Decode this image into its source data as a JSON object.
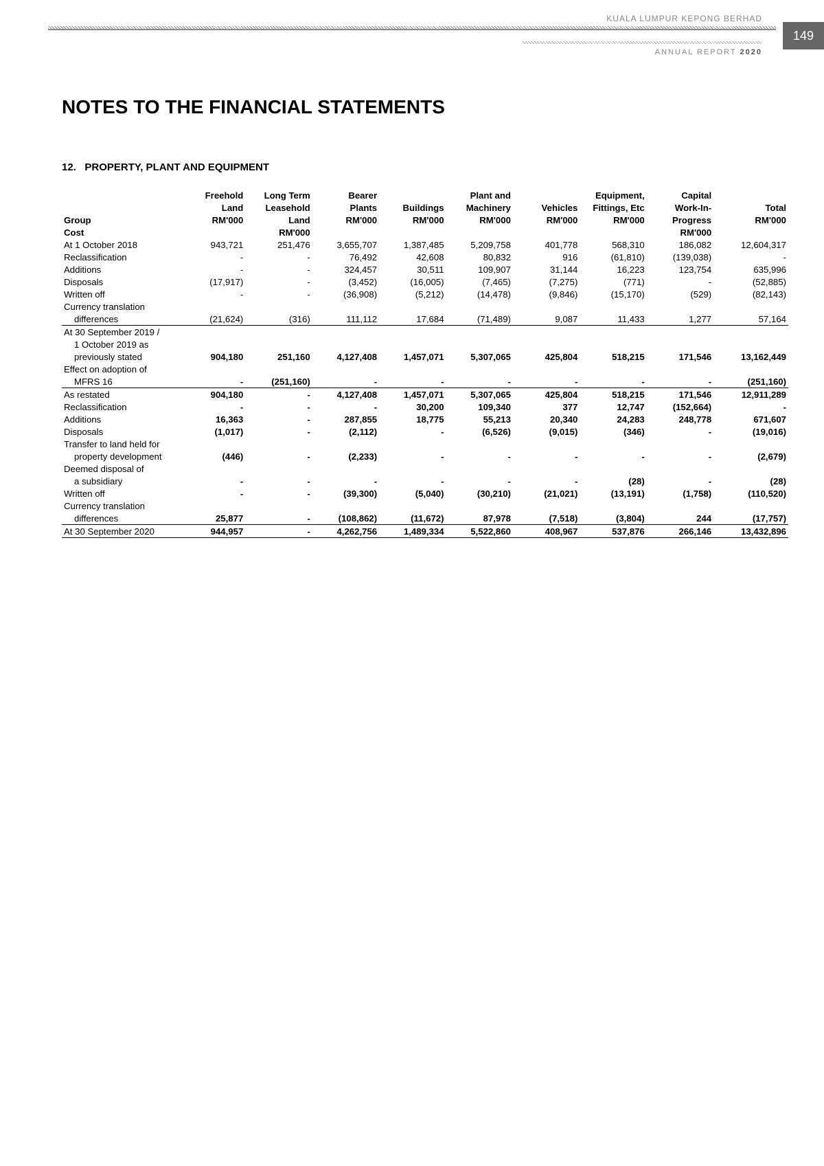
{
  "page_number": "149",
  "company": "KUALA LUMPUR KEPONG BERHAD",
  "report_label": "ANNUAL REPORT",
  "report_year": "2020",
  "page_title": "NOTES TO THE FINANCIAL STATEMENTS",
  "note_number": "12.",
  "note_heading": "PROPERTY, PLANT AND EQUIPMENT",
  "group_label": "Group",
  "section_label": "Cost",
  "columns": [
    {
      "l1": "",
      "l2": "",
      "l3": ""
    },
    {
      "l1": "Freehold",
      "l2": "Land",
      "l3": "RM'000"
    },
    {
      "l1": "Long Term",
      "l2": "Leasehold",
      "l2b": "Land",
      "l3": "RM'000"
    },
    {
      "l1": "Bearer",
      "l2": "Plants",
      "l3": "RM'000"
    },
    {
      "l1": "",
      "l2": "Buildings",
      "l3": "RM'000"
    },
    {
      "l1": "Plant and",
      "l2": "Machinery",
      "l3": "RM'000"
    },
    {
      "l1": "",
      "l2": "Vehicles",
      "l3": "RM'000"
    },
    {
      "l1": "Equipment,",
      "l2": "Fittings, Etc",
      "l3": "RM'000"
    },
    {
      "l1": "Capital",
      "l2": "Work-In-",
      "l2b": "Progress",
      "l3": "RM'000"
    },
    {
      "l1": "",
      "l2": "Total",
      "l3": "RM'000"
    }
  ],
  "rows": [
    {
      "label": "At 1 October 2018",
      "v": [
        "943,721",
        "251,476",
        "3,655,707",
        "1,387,485",
        "5,209,758",
        "401,778",
        "568,310",
        "186,082",
        "12,604,317"
      ]
    },
    {
      "label": "Reclassification",
      "v": [
        "-",
        "-",
        "76,492",
        "42,608",
        "80,832",
        "916",
        "(61,810)",
        "(139,038)",
        "-"
      ]
    },
    {
      "label": "Additions",
      "v": [
        "-",
        "-",
        "324,457",
        "30,511",
        "109,907",
        "31,144",
        "16,223",
        "123,754",
        "635,996"
      ]
    },
    {
      "label": "Disposals",
      "v": [
        "(17,917)",
        "-",
        "(3,452)",
        "(16,005)",
        "(7,465)",
        "(7,275)",
        "(771)",
        "-",
        "(52,885)"
      ]
    },
    {
      "label": "Written off",
      "v": [
        "-",
        "-",
        "(36,908)",
        "(5,212)",
        "(14,478)",
        "(9,846)",
        "(15,170)",
        "(529)",
        "(82,143)"
      ]
    },
    {
      "label": "Currency translation",
      "v": [
        "",
        "",
        "",
        "",
        "",
        "",
        "",
        "",
        ""
      ],
      "noline": true
    },
    {
      "label": "differences",
      "indent": true,
      "v": [
        "(21,624)",
        "(316)",
        "111,112",
        "17,684",
        "(71,489)",
        "9,087",
        "11,433",
        "1,277",
        "57,164"
      ],
      "rule_bottom": true
    },
    {
      "label": "At 30 September 2019 /",
      "v": [
        "",
        "",
        "",
        "",
        "",
        "",
        "",
        "",
        ""
      ],
      "noline": true
    },
    {
      "label": "1 October 2019 as",
      "indent": true,
      "v": [
        "",
        "",
        "",
        "",
        "",
        "",
        "",
        "",
        ""
      ],
      "noline": true
    },
    {
      "label": "previously stated",
      "indent": true,
      "bold": true,
      "v": [
        "904,180",
        "251,160",
        "4,127,408",
        "1,457,071",
        "5,307,065",
        "425,804",
        "518,215",
        "171,546",
        "13,162,449"
      ]
    },
    {
      "label": "Effect on adoption of",
      "v": [
        "",
        "",
        "",
        "",
        "",
        "",
        "",
        "",
        ""
      ],
      "noline": true
    },
    {
      "label": "MFRS 16",
      "indent": true,
      "bold": true,
      "v": [
        "-",
        "(251,160)",
        "-",
        "-",
        "-",
        "-",
        "-",
        "-",
        "(251,160)"
      ],
      "rule_bottom": true
    },
    {
      "label": "As restated",
      "bold": true,
      "v": [
        "904,180",
        "-",
        "4,127,408",
        "1,457,071",
        "5,307,065",
        "425,804",
        "518,215",
        "171,546",
        "12,911,289"
      ]
    },
    {
      "label": "Reclassification",
      "bold": true,
      "v": [
        "-",
        "-",
        "-",
        "30,200",
        "109,340",
        "377",
        "12,747",
        "(152,664)",
        "-"
      ]
    },
    {
      "label": "Additions",
      "bold": true,
      "v": [
        "16,363",
        "-",
        "287,855",
        "18,775",
        "55,213",
        "20,340",
        "24,283",
        "248,778",
        "671,607"
      ]
    },
    {
      "label": "Disposals",
      "bold": true,
      "v": [
        "(1,017)",
        "-",
        "(2,112)",
        "-",
        "(6,526)",
        "(9,015)",
        "(346)",
        "-",
        "(19,016)"
      ]
    },
    {
      "label": "Transfer to land held for",
      "v": [
        "",
        "",
        "",
        "",
        "",
        "",
        "",
        "",
        ""
      ],
      "noline": true
    },
    {
      "label": "property development",
      "indent": true,
      "bold": true,
      "v": [
        "(446)",
        "-",
        "(2,233)",
        "-",
        "-",
        "-",
        "-",
        "-",
        "(2,679)"
      ]
    },
    {
      "label": "Deemed disposal of",
      "v": [
        "",
        "",
        "",
        "",
        "",
        "",
        "",
        "",
        ""
      ],
      "noline": true
    },
    {
      "label": "a subsidiary",
      "indent": true,
      "bold": true,
      "v": [
        "-",
        "-",
        "-",
        "-",
        "-",
        "-",
        "(28)",
        "-",
        "(28)"
      ]
    },
    {
      "label": "Written off",
      "bold": true,
      "v": [
        "-",
        "-",
        "(39,300)",
        "(5,040)",
        "(30,210)",
        "(21,021)",
        "(13,191)",
        "(1,758)",
        "(110,520)"
      ]
    },
    {
      "label": "Currency translation",
      "v": [
        "",
        "",
        "",
        "",
        "",
        "",
        "",
        "",
        ""
      ],
      "noline": true
    },
    {
      "label": "differences",
      "indent": true,
      "bold": true,
      "v": [
        "25,877",
        "-",
        "(108,862)",
        "(11,672)",
        "87,978",
        "(7,518)",
        "(3,804)",
        "244",
        "(17,757)"
      ],
      "rule_bottom": true
    },
    {
      "label": "At 30 September 2020",
      "bold": true,
      "v": [
        "944,957",
        "-",
        "4,262,756",
        "1,489,334",
        "5,522,860",
        "408,967",
        "537,876",
        "266,146",
        "13,432,896"
      ],
      "rule_bottom": true
    }
  ],
  "styling": {
    "background": "#ffffff",
    "text_color": "#000000",
    "muted_color": "#888888",
    "pagenum_bg": "#666666",
    "title_fontsize": 28,
    "note_fontsize": 15,
    "table_fontsize": 13.2,
    "rule_color": "#000000"
  }
}
